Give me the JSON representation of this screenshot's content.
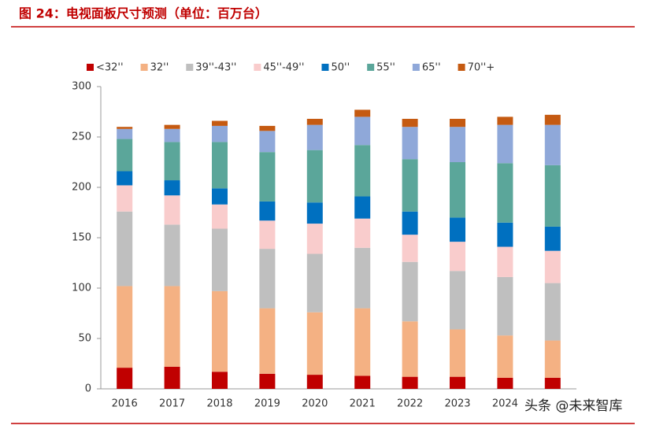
{
  "chart_data": {
    "type": "stacked_bar",
    "title": "图 24：电视面板尺寸预测（单位：百万台）",
    "annotation": "头条 @未来智库",
    "categories": [
      "2016",
      "2017",
      "2018",
      "2019",
      "2020",
      "2021",
      "2022",
      "2023",
      "2024",
      null
    ],
    "series": [
      {
        "name": "<32''",
        "color": "#c00000",
        "values": [
          21,
          22,
          17,
          15,
          14,
          13,
          12,
          12,
          11,
          11
        ]
      },
      {
        "name": "32''",
        "color": "#f4b183",
        "values": [
          81,
          80,
          80,
          65,
          62,
          67,
          55,
          47,
          42,
          37
        ]
      },
      {
        "name": "39''-43''",
        "color": "#bfbfbf",
        "values": [
          74,
          61,
          62,
          59,
          58,
          60,
          59,
          58,
          58,
          57
        ]
      },
      {
        "name": "45''-49''",
        "color": "#f9cccc",
        "values": [
          26,
          29,
          24,
          28,
          30,
          29,
          27,
          29,
          30,
          32
        ]
      },
      {
        "name": "50''",
        "color": "#0070c0",
        "values": [
          14,
          15,
          16,
          19,
          21,
          22,
          23,
          24,
          24,
          24
        ]
      },
      {
        "name": "55''",
        "color": "#5ba69a",
        "values": [
          32,
          38,
          46,
          49,
          52,
          51,
          52,
          55,
          59,
          61
        ]
      },
      {
        "name": "65''",
        "color": "#8fa8d9",
        "values": [
          10,
          13,
          16,
          21,
          25,
          28,
          32,
          35,
          38,
          40
        ]
      },
      {
        "name": "70''+",
        "color": "#c55a11",
        "values": [
          2,
          4,
          5,
          5,
          6,
          7,
          8,
          8,
          8,
          10
        ]
      }
    ],
    "ylim": [
      0,
      300
    ],
    "yticks": [
      0,
      50,
      100,
      150,
      200,
      250,
      300
    ]
  }
}
